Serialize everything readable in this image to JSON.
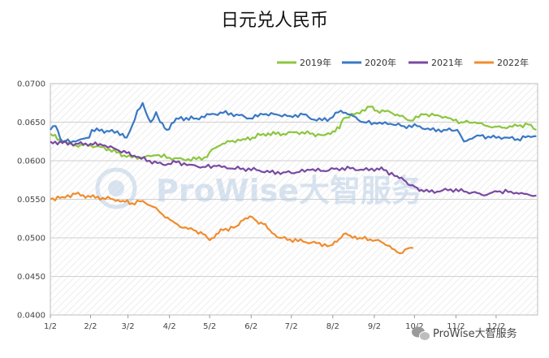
{
  "chart_data": {
    "type": "line",
    "title": "日元兑人民币",
    "xlabel": "",
    "ylabel": "",
    "ylim": [
      0.04,
      0.07
    ],
    "y_ticks": [
      "0.0400",
      "0.0450",
      "0.0500",
      "0.0550",
      "0.0600",
      "0.0650",
      "0.0700"
    ],
    "x_ticks": [
      "1/2",
      "2/2",
      "3/2",
      "4/2",
      "5/2",
      "6/2",
      "7/2",
      "8/2",
      "9/2",
      "10/2",
      "11/2",
      "12/2"
    ],
    "x_axis": "day of year (1 = Jan 2)",
    "legend_position": "top-right",
    "grid": true,
    "background": "diagonal-hatch",
    "series": [
      {
        "name": "2019年",
        "color": "#8cc63f",
        "points": [
          [
            1,
            0.0635
          ],
          [
            10,
            0.0625
          ],
          [
            20,
            0.062
          ],
          [
            31,
            0.062
          ],
          [
            45,
            0.0615
          ],
          [
            58,
            0.0605
          ],
          [
            70,
            0.0604
          ],
          [
            80,
            0.0607
          ],
          [
            90,
            0.0604
          ],
          [
            100,
            0.0602
          ],
          [
            110,
            0.0602
          ],
          [
            118,
            0.0605
          ],
          [
            122,
            0.0615
          ],
          [
            128,
            0.062
          ],
          [
            135,
            0.0625
          ],
          [
            145,
            0.0628
          ],
          [
            152,
            0.063
          ],
          [
            160,
            0.0635
          ],
          [
            175,
            0.0635
          ],
          [
            185,
            0.0637
          ],
          [
            195,
            0.0635
          ],
          [
            205,
            0.0633
          ],
          [
            212,
            0.0638
          ],
          [
            217,
            0.0642
          ],
          [
            220,
            0.0655
          ],
          [
            230,
            0.0662
          ],
          [
            240,
            0.067
          ],
          [
            245,
            0.0665
          ],
          [
            255,
            0.0663
          ],
          [
            262,
            0.0658
          ],
          [
            270,
            0.0652
          ],
          [
            280,
            0.066
          ],
          [
            292,
            0.0658
          ],
          [
            300,
            0.0655
          ],
          [
            308,
            0.065
          ],
          [
            318,
            0.065
          ],
          [
            325,
            0.0646
          ],
          [
            333,
            0.0644
          ],
          [
            340,
            0.0643
          ],
          [
            350,
            0.0645
          ],
          [
            358,
            0.0647
          ],
          [
            364,
            0.064
          ]
        ]
      },
      {
        "name": "2020年",
        "color": "#3a78c4",
        "points": [
          [
            1,
            0.064
          ],
          [
            5,
            0.0645
          ],
          [
            10,
            0.0625
          ],
          [
            20,
            0.0625
          ],
          [
            30,
            0.063
          ],
          [
            32,
            0.064
          ],
          [
            45,
            0.0638
          ],
          [
            55,
            0.0635
          ],
          [
            58,
            0.063
          ],
          [
            62,
            0.0645
          ],
          [
            66,
            0.0665
          ],
          [
            70,
            0.0675
          ],
          [
            73,
            0.066
          ],
          [
            76,
            0.065
          ],
          [
            80,
            0.0663
          ],
          [
            83,
            0.065
          ],
          [
            88,
            0.064
          ],
          [
            95,
            0.0655
          ],
          [
            110,
            0.0655
          ],
          [
            120,
            0.066
          ],
          [
            130,
            0.0662
          ],
          [
            140,
            0.066
          ],
          [
            150,
            0.0655
          ],
          [
            160,
            0.066
          ],
          [
            170,
            0.066
          ],
          [
            180,
            0.0658
          ],
          [
            190,
            0.066
          ],
          [
            200,
            0.0652
          ],
          [
            210,
            0.0655
          ],
          [
            218,
            0.0665
          ],
          [
            225,
            0.066
          ],
          [
            235,
            0.065
          ],
          [
            245,
            0.0648
          ],
          [
            255,
            0.0648
          ],
          [
            265,
            0.0645
          ],
          [
            275,
            0.0645
          ],
          [
            285,
            0.064
          ],
          [
            295,
            0.064
          ],
          [
            305,
            0.064
          ],
          [
            310,
            0.0625
          ],
          [
            320,
            0.0633
          ],
          [
            330,
            0.063
          ],
          [
            340,
            0.063
          ],
          [
            350,
            0.0628
          ],
          [
            358,
            0.0632
          ],
          [
            364,
            0.0632
          ]
        ]
      },
      {
        "name": "2021年",
        "color": "#7a4aa0",
        "points": [
          [
            1,
            0.0625
          ],
          [
            10,
            0.0623
          ],
          [
            20,
            0.0622
          ],
          [
            31,
            0.0622
          ],
          [
            40,
            0.062
          ],
          [
            50,
            0.0615
          ],
          [
            58,
            0.061
          ],
          [
            65,
            0.0605
          ],
          [
            75,
            0.06
          ],
          [
            85,
            0.0595
          ],
          [
            95,
            0.0598
          ],
          [
            105,
            0.0595
          ],
          [
            115,
            0.0592
          ],
          [
            125,
            0.0593
          ],
          [
            135,
            0.059
          ],
          [
            145,
            0.059
          ],
          [
            155,
            0.0588
          ],
          [
            165,
            0.0585
          ],
          [
            175,
            0.0585
          ],
          [
            185,
            0.0585
          ],
          [
            195,
            0.0588
          ],
          [
            205,
            0.0587
          ],
          [
            215,
            0.059
          ],
          [
            225,
            0.059
          ],
          [
            235,
            0.0588
          ],
          [
            245,
            0.059
          ],
          [
            250,
            0.0588
          ],
          [
            260,
            0.058
          ],
          [
            265,
            0.0575
          ],
          [
            270,
            0.0568
          ],
          [
            275,
            0.0565
          ],
          [
            280,
            0.056
          ],
          [
            290,
            0.056
          ],
          [
            300,
            0.0563
          ],
          [
            310,
            0.056
          ],
          [
            320,
            0.0558
          ],
          [
            325,
            0.0555
          ],
          [
            335,
            0.056
          ],
          [
            345,
            0.056
          ],
          [
            355,
            0.0557
          ],
          [
            364,
            0.0555
          ]
        ]
      },
      {
        "name": "2022年",
        "color": "#f08c2e",
        "points": [
          [
            1,
            0.055
          ],
          [
            10,
            0.0553
          ],
          [
            20,
            0.0557
          ],
          [
            31,
            0.0553
          ],
          [
            40,
            0.0552
          ],
          [
            48,
            0.055
          ],
          [
            55,
            0.0548
          ],
          [
            62,
            0.0545
          ],
          [
            70,
            0.0548
          ],
          [
            78,
            0.054
          ],
          [
            85,
            0.053
          ],
          [
            92,
            0.0522
          ],
          [
            100,
            0.0513
          ],
          [
            108,
            0.051
          ],
          [
            115,
            0.0505
          ],
          [
            120,
            0.0497
          ],
          [
            125,
            0.0505
          ],
          [
            130,
            0.051
          ],
          [
            140,
            0.0515
          ],
          [
            145,
            0.0523
          ],
          [
            150,
            0.0528
          ],
          [
            155,
            0.0522
          ],
          [
            160,
            0.0518
          ],
          [
            165,
            0.051
          ],
          [
            172,
            0.05
          ],
          [
            180,
            0.0498
          ],
          [
            190,
            0.0495
          ],
          [
            200,
            0.0493
          ],
          [
            210,
            0.049
          ],
          [
            215,
            0.0495
          ],
          [
            220,
            0.0505
          ],
          [
            225,
            0.0503
          ],
          [
            232,
            0.05
          ],
          [
            240,
            0.0498
          ],
          [
            248,
            0.0495
          ],
          [
            253,
            0.049
          ],
          [
            258,
            0.0485
          ],
          [
            262,
            0.048
          ],
          [
            266,
            0.0485
          ],
          [
            272,
            0.0487
          ]
        ]
      }
    ]
  },
  "watermark": "ProWise大智服务",
  "footer": {
    "brand": "ProWise大智服务",
    "icon": "wechat-icon"
  }
}
